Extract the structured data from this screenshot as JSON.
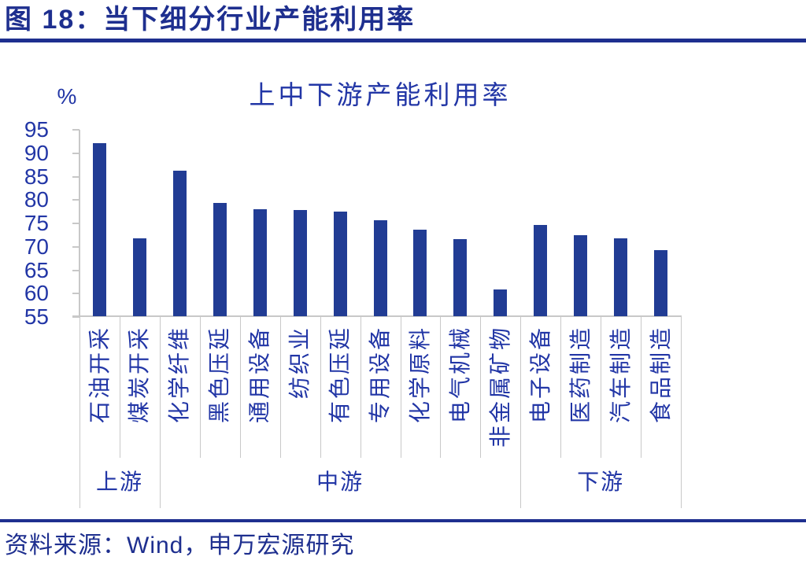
{
  "figure": {
    "title": "图 18：当下细分行业产能利用率",
    "source": "资料来源：Wind，申万宏源研究"
  },
  "chart_data": {
    "type": "bar",
    "title": "上中下游产能利用率",
    "unit_label": "%",
    "categories": [
      "石油开采",
      "煤炭开采",
      "化学纤维",
      "黑色压延",
      "通用设备",
      "纺织业",
      "有色压延",
      "专用设备",
      "化学原料",
      "电气机械",
      "非金属矿物",
      "电子设备",
      "医药制造",
      "汽车制造",
      "食品制造"
    ],
    "values": [
      92.2,
      71.8,
      86.3,
      79.3,
      78.0,
      77.8,
      77.6,
      75.6,
      73.6,
      71.7,
      60.9,
      74.6,
      72.5,
      71.8,
      69.3
    ],
    "groups": [
      {
        "label": "上游",
        "span": 2
      },
      {
        "label": "中游",
        "span": 9
      },
      {
        "label": "下游",
        "span": 4
      }
    ],
    "ylabel": "",
    "xlabel": "",
    "ylim": [
      55,
      95
    ],
    "yticks": [
      95,
      90,
      85,
      80,
      75,
      70,
      65,
      60,
      55
    ],
    "grid": false,
    "legend": "none",
    "colors": {
      "bar": "#213C94",
      "chart_text": "#2236A6",
      "navy": "#1E2F8F",
      "axis_gray": "#C8C8C8"
    }
  }
}
